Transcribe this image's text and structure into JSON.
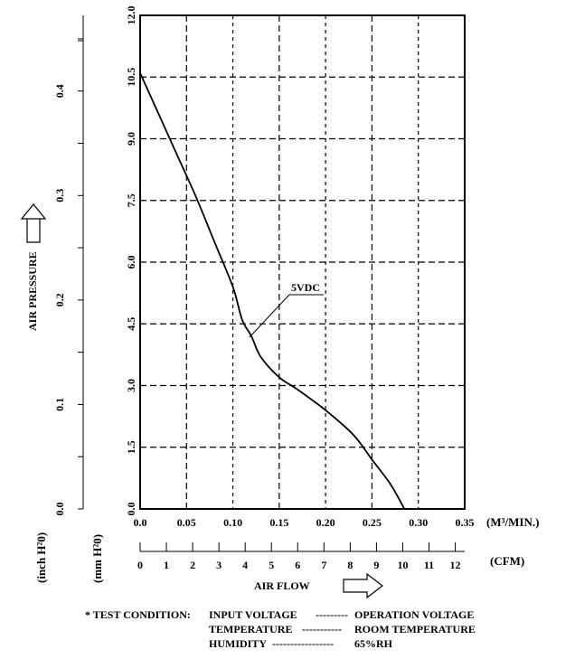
{
  "chart_data": {
    "type": "line",
    "x_axis_primary": {
      "unit": "(M³/MIN.)",
      "ticks": [
        "0.0",
        "0.05",
        "0.10",
        "0.15",
        "0.20",
        "0.25",
        "0.30",
        "0.35"
      ],
      "range": [
        0,
        0.35
      ]
    },
    "x_axis_secondary": {
      "unit": "(CFM)",
      "ticks": [
        "0",
        "1",
        "2",
        "3",
        "4",
        "5",
        "6",
        "7",
        "8",
        "9",
        "10",
        "11",
        "12"
      ]
    },
    "xlabel": "AIR FLOW",
    "y_axis_primary": {
      "unit": "(mm H²0)",
      "ticks": [
        "0.0",
        "1.5",
        "3.0",
        "4.5",
        "6.0",
        "7.5",
        "9.0",
        "10.5",
        "12.0"
      ],
      "range": [
        0,
        12
      ]
    },
    "y_axis_secondary": {
      "unit": "(inch H²0)",
      "ticks": [
        "0.0",
        "0.1",
        "0.2",
        "0.3",
        "0.4"
      ]
    },
    "ylabel": "AIR PRESSURE",
    "grid": true,
    "series": [
      {
        "name": "5VDC",
        "points": [
          [
            0.0,
            10.6
          ],
          [
            0.02,
            9.6
          ],
          [
            0.04,
            8.6
          ],
          [
            0.06,
            7.6
          ],
          [
            0.08,
            6.5
          ],
          [
            0.1,
            5.4
          ],
          [
            0.11,
            4.6
          ],
          [
            0.12,
            4.2
          ],
          [
            0.13,
            3.7
          ],
          [
            0.15,
            3.2
          ],
          [
            0.17,
            2.9
          ],
          [
            0.2,
            2.4
          ],
          [
            0.23,
            1.8
          ],
          [
            0.25,
            1.2
          ],
          [
            0.27,
            0.6
          ],
          [
            0.285,
            0.0
          ]
        ]
      }
    ],
    "annotation": "5VDC"
  },
  "test_condition": {
    "prefix": "* TEST CONDITION:",
    "rows": [
      {
        "label": "INPUT VOLTAGE",
        "dashes": "---------",
        "value": "OPERATION VOLTAGE"
      },
      {
        "label": "TEMPERATURE",
        "dashes": "-----------",
        "value": "ROOM TEMPERATURE"
      },
      {
        "label": "HUMIDITY",
        "dashes": "-----------------",
        "value": "65%RH"
      }
    ]
  }
}
